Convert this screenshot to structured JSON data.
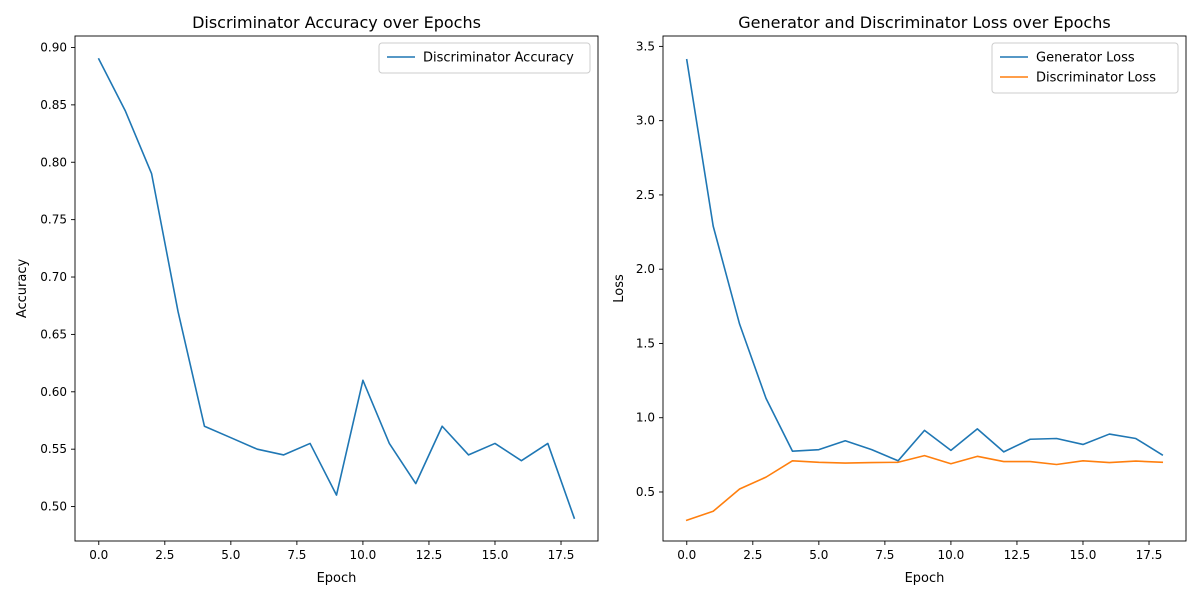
{
  "chart_data": [
    {
      "type": "line",
      "title": "Discriminator Accuracy over Epochs",
      "xlabel": "Epoch",
      "ylabel": "Accuracy",
      "xlim": [
        -0.9,
        18.9
      ],
      "ylim": [
        0.47,
        0.91
      ],
      "xticks": [
        0.0,
        2.5,
        5.0,
        7.5,
        10.0,
        12.5,
        15.0,
        17.5
      ],
      "xtick_labels": [
        "0.0",
        "2.5",
        "5.0",
        "7.5",
        "10.0",
        "12.5",
        "15.0",
        "17.5"
      ],
      "yticks": [
        0.5,
        0.55,
        0.6,
        0.65,
        0.7,
        0.75,
        0.8,
        0.85,
        0.9
      ],
      "ytick_labels": [
        "0.50",
        "0.55",
        "0.60",
        "0.65",
        "0.70",
        "0.75",
        "0.80",
        "0.85",
        "0.90"
      ],
      "grid": false,
      "legend": "upper right",
      "x": [
        0,
        1,
        2,
        3,
        4,
        5,
        6,
        7,
        8,
        9,
        10,
        11,
        12,
        13,
        14,
        15,
        16,
        17,
        18
      ],
      "series": [
        {
          "name": "Discriminator Accuracy",
          "color": "#1f77b4",
          "values": [
            0.89,
            0.845,
            0.79,
            0.67,
            0.57,
            0.56,
            0.55,
            0.545,
            0.555,
            0.51,
            0.61,
            0.555,
            0.52,
            0.57,
            0.545,
            0.555,
            0.54,
            0.555,
            0.49
          ]
        }
      ]
    },
    {
      "type": "line",
      "title": "Generator and Discriminator Loss over Epochs",
      "xlabel": "Epoch",
      "ylabel": "Loss",
      "xlim": [
        -0.9,
        18.9
      ],
      "ylim": [
        0.17,
        3.57
      ],
      "xticks": [
        0.0,
        2.5,
        5.0,
        7.5,
        10.0,
        12.5,
        15.0,
        17.5
      ],
      "xtick_labels": [
        "0.0",
        "2.5",
        "5.0",
        "7.5",
        "10.0",
        "12.5",
        "15.0",
        "17.5"
      ],
      "yticks": [
        0.5,
        1.0,
        1.5,
        2.0,
        2.5,
        3.0,
        3.5
      ],
      "ytick_labels": [
        "0.5",
        "1.0",
        "1.5",
        "2.0",
        "2.5",
        "3.0",
        "3.5"
      ],
      "grid": false,
      "legend": "upper right",
      "x": [
        0,
        1,
        2,
        3,
        4,
        5,
        6,
        7,
        8,
        9,
        10,
        11,
        12,
        13,
        14,
        15,
        16,
        17,
        18
      ],
      "series": [
        {
          "name": "Generator Loss",
          "color": "#1f77b4",
          "values": [
            3.41,
            2.29,
            1.63,
            1.13,
            0.775,
            0.785,
            0.845,
            0.785,
            0.71,
            0.915,
            0.78,
            0.925,
            0.77,
            0.855,
            0.86,
            0.82,
            0.89,
            0.86,
            0.75
          ]
        },
        {
          "name": "Discriminator Loss",
          "color": "#ff7f0e",
          "values": [
            0.31,
            0.37,
            0.52,
            0.6,
            0.71,
            0.7,
            0.695,
            0.698,
            0.7,
            0.745,
            0.69,
            0.74,
            0.705,
            0.705,
            0.685,
            0.71,
            0.698,
            0.708,
            0.7
          ]
        }
      ]
    }
  ]
}
